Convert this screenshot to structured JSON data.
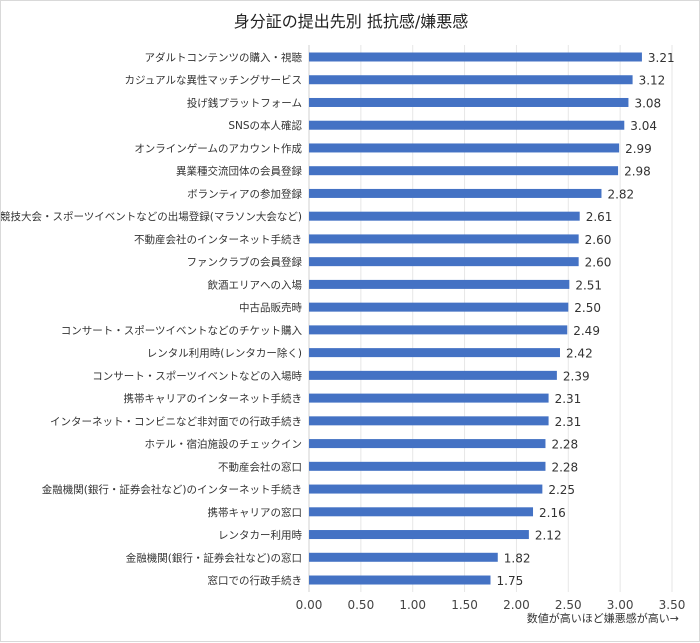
{
  "chart_data": {
    "type": "bar",
    "orientation": "horizontal",
    "title": "身分証の提出先別 抵抗感/嫌悪感",
    "xlabel": "数値が高いほど嫌悪感が高い→",
    "ylabel": "",
    "xlim": [
      0,
      3.5
    ],
    "xticks": [
      "0.00",
      "0.50",
      "1.00",
      "1.50",
      "2.00",
      "2.50",
      "3.00",
      "3.50"
    ],
    "grid": true,
    "bar_color": "#4472C4",
    "categories": [
      "アダルトコンテンツの購入・視聴",
      "カジュアルな異性マッチングサービス",
      "投げ銭プラットフォーム",
      "SNSの本人確認",
      "オンラインゲームのアカウント作成",
      "異業種交流団体の会員登録",
      "ボランティアの参加登録",
      "競技大会・スポーツイベントなどの出場登録(マラソン大会など)",
      "不動産会社のインターネット手続き",
      "ファンクラブの会員登録",
      "飲酒エリアへの入場",
      "中古品販売時",
      "コンサート・スポーツイベントなどのチケット購入",
      "レンタル利用時(レンタカー除く)",
      "コンサート・スポーツイベントなどの入場時",
      "携帯キャリアのインターネット手続き",
      "インターネット・コンビニなど非対面での行政手続き",
      "ホテル・宿泊施設のチェックイン",
      "不動産会社の窓口",
      "金融機関(銀行・証券会社など)のインターネット手続き",
      "携帯キャリアの窓口",
      "レンタカー利用時",
      "金融機関(銀行・証券会社など)の窓口",
      "窓口での行政手続き"
    ],
    "values": [
      3.21,
      3.12,
      3.08,
      3.04,
      2.99,
      2.98,
      2.82,
      2.61,
      2.6,
      2.6,
      2.51,
      2.5,
      2.49,
      2.42,
      2.39,
      2.31,
      2.31,
      2.28,
      2.28,
      2.25,
      2.16,
      2.12,
      1.82,
      1.75
    ],
    "value_labels": [
      "3.21",
      "3.12",
      "3.08",
      "3.04",
      "2.99",
      "2.98",
      "2.82",
      "2.61",
      "2.60",
      "2.60",
      "2.51",
      "2.50",
      "2.49",
      "2.42",
      "2.39",
      "2.31",
      "2.31",
      "2.28",
      "2.28",
      "2.25",
      "2.16",
      "2.12",
      "1.82",
      "1.75"
    ]
  }
}
